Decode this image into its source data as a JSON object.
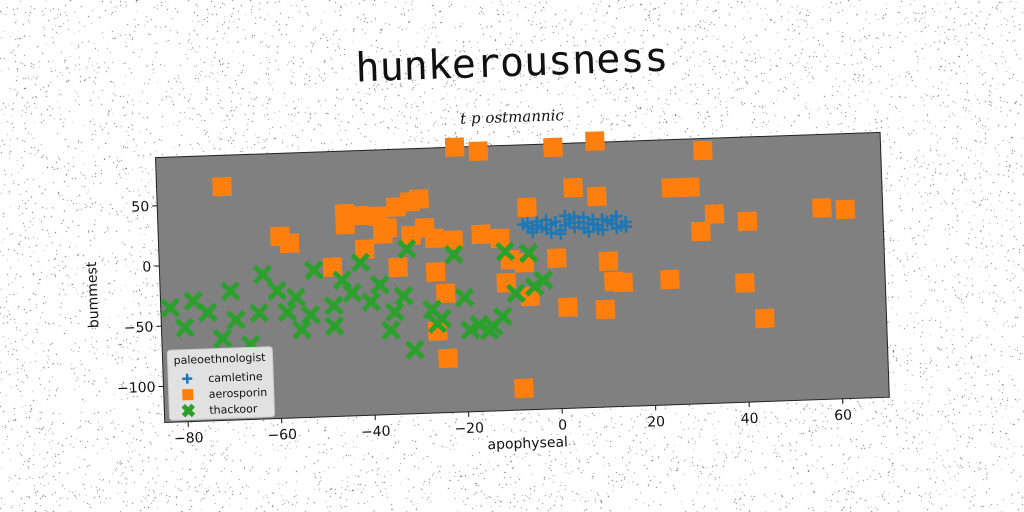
{
  "chart_data": {
    "type": "scatter",
    "title": "hunkerousness",
    "subtitle": "t p ostmannic",
    "xlabel": "apophyseal",
    "ylabel": "bummest",
    "xlim": [
      -85,
      70
    ],
    "ylim": [
      -130,
      90
    ],
    "xticks": [
      -80,
      -60,
      -40,
      -20,
      0,
      20,
      40,
      60
    ],
    "yticks": [
      -100,
      -50,
      0,
      50
    ],
    "grid": false,
    "plot_background": "#808080",
    "legend": {
      "title": "paleoethnologist",
      "placement": "lower-left"
    },
    "series": [
      {
        "name": "camletine",
        "marker": "plus",
        "color": "#1f77b4",
        "points": [
          [
            -7,
            24
          ],
          [
            -6,
            22
          ],
          [
            -5,
            20
          ],
          [
            -4,
            26
          ],
          [
            -3,
            21
          ],
          [
            -2,
            19
          ],
          [
            -1,
            23
          ],
          [
            0,
            25
          ],
          [
            1,
            18
          ],
          [
            2,
            22
          ],
          [
            3,
            27
          ],
          [
            4,
            20
          ],
          [
            5,
            24
          ],
          [
            6,
            19
          ],
          [
            7,
            23
          ],
          [
            8,
            26
          ],
          [
            9,
            21
          ],
          [
            10,
            17
          ],
          [
            11,
            24
          ],
          [
            12,
            22
          ],
          [
            13,
            28
          ],
          [
            14,
            20
          ],
          [
            15,
            23
          ],
          [
            -5,
            17
          ],
          [
            -2,
            27
          ],
          [
            1,
            15
          ],
          [
            4,
            29
          ],
          [
            7,
            16
          ],
          [
            10,
            26
          ],
          [
            13,
            18
          ],
          [
            -6,
            25
          ],
          [
            -1,
            16
          ],
          [
            3,
            24
          ],
          [
            6,
            28
          ],
          [
            9,
            18
          ],
          [
            12,
            25
          ],
          [
            15,
            19
          ],
          [
            -4,
            23
          ],
          [
            2,
            30
          ],
          [
            8,
            22
          ]
        ]
      },
      {
        "name": "aerosporin",
        "marker": "square",
        "color": "#ff7f0e",
        "points": [
          [
            -21,
            90
          ],
          [
            -16,
            86
          ],
          [
            0,
            87
          ],
          [
            9,
            91
          ],
          [
            32,
            80
          ],
          [
            -71,
            64
          ],
          [
            4,
            53
          ],
          [
            9,
            45
          ],
          [
            25,
            50
          ],
          [
            29,
            50
          ],
          [
            -45,
            38
          ],
          [
            -42,
            36
          ],
          [
            -34,
            42
          ],
          [
            -38,
            35
          ],
          [
            -31,
            46
          ],
          [
            -29,
            48
          ],
          [
            -36,
            25
          ],
          [
            -6,
            38
          ],
          [
            -59,
            21
          ],
          [
            -57,
            15
          ],
          [
            -45,
            29
          ],
          [
            -37,
            20
          ],
          [
            -26,
            15
          ],
          [
            -31,
            18
          ],
          [
            -22,
            13
          ],
          [
            -16,
            17
          ],
          [
            -12,
            13
          ],
          [
            34,
            27
          ],
          [
            41,
            20
          ],
          [
            31,
            13
          ],
          [
            57,
            29
          ],
          [
            62,
            27
          ],
          [
            -48,
            -6
          ],
          [
            -34,
            -8
          ],
          [
            -26,
            -13
          ],
          [
            -10,
            -5
          ],
          [
            0,
            -5
          ],
          [
            -7,
            -8
          ],
          [
            11,
            -9
          ],
          [
            14,
            -27
          ],
          [
            24,
            -26
          ],
          [
            -24,
            -31
          ],
          [
            -11,
            -24
          ],
          [
            40,
            -31
          ],
          [
            -26,
            -62
          ],
          [
            12,
            -26
          ],
          [
            -24,
            -85
          ],
          [
            -6,
            -36
          ],
          [
            2,
            -46
          ],
          [
            10,
            -49
          ],
          [
            44,
            -61
          ],
          [
            -8,
            -112
          ],
          [
            -41,
            8
          ],
          [
            -28,
            24
          ]
        ]
      },
      {
        "name": "thackoor",
        "marker": "x",
        "color": "#2ca02c",
        "points": [
          [
            -32,
            7
          ],
          [
            -22,
            1
          ],
          [
            -11,
            2
          ],
          [
            -6,
            0
          ],
          [
            -42,
            -3
          ],
          [
            -52,
            -8
          ],
          [
            -63,
            -10
          ],
          [
            -46,
            -17
          ],
          [
            -70,
            -23
          ],
          [
            -78,
            -30
          ],
          [
            -83,
            -35
          ],
          [
            -75,
            -40
          ],
          [
            -69,
            -47
          ],
          [
            -64,
            -42
          ],
          [
            -60,
            -24
          ],
          [
            -56,
            -30
          ],
          [
            -53,
            -45
          ],
          [
            -48,
            -38
          ],
          [
            -44,
            -28
          ],
          [
            -40,
            -36
          ],
          [
            -38,
            -22
          ],
          [
            -35,
            -45
          ],
          [
            -33,
            -32
          ],
          [
            -27,
            -44
          ],
          [
            -25,
            -52
          ],
          [
            -20,
            -35
          ],
          [
            -17,
            -58
          ],
          [
            -15,
            -63
          ],
          [
            -12,
            -52
          ],
          [
            -9,
            -33
          ],
          [
            -5,
            -28
          ],
          [
            -3,
            -23
          ],
          [
            -26,
            -56
          ],
          [
            -36,
            -60
          ],
          [
            -31,
            -77
          ],
          [
            -55,
            -57
          ],
          [
            -66,
            -68
          ],
          [
            -72,
            -62
          ],
          [
            -80,
            -52
          ],
          [
            -58,
            -42
          ],
          [
            -48,
            -55
          ],
          [
            -19,
            -62
          ],
          [
            -14,
            -60
          ]
        ]
      }
    ]
  }
}
